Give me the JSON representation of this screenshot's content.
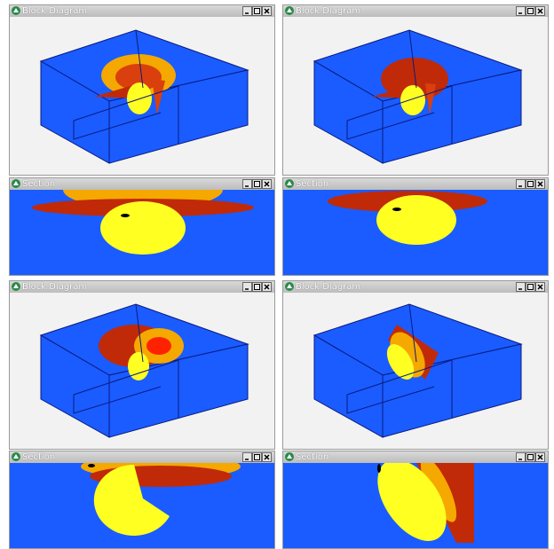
{
  "windows": [
    {
      "title": "Block Diagram"
    },
    {
      "title": "Block Diagram"
    },
    {
      "title": "Section"
    },
    {
      "title": "Section"
    },
    {
      "title": "Block Diagram"
    },
    {
      "title": "Block Diagram"
    },
    {
      "title": "Section"
    },
    {
      "title": "Section"
    }
  ]
}
